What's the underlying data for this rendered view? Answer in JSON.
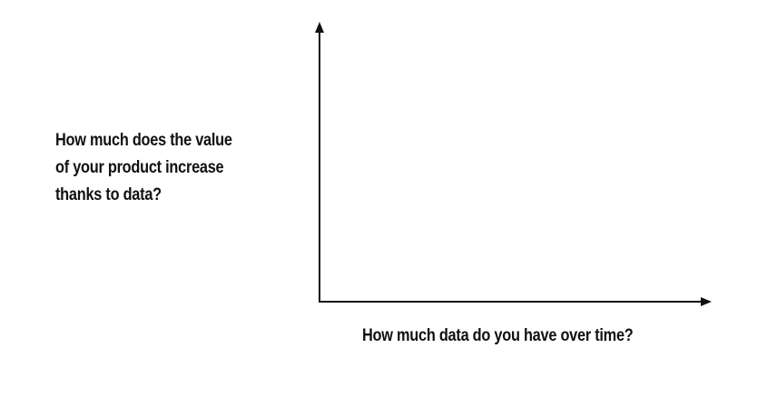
{
  "diagram": {
    "y_axis_label_lines": [
      "How much does the value",
      "of your product increase",
      "thanks to data?"
    ],
    "x_axis_label": "How much data do you have over time?",
    "axis_color": "#111111"
  }
}
